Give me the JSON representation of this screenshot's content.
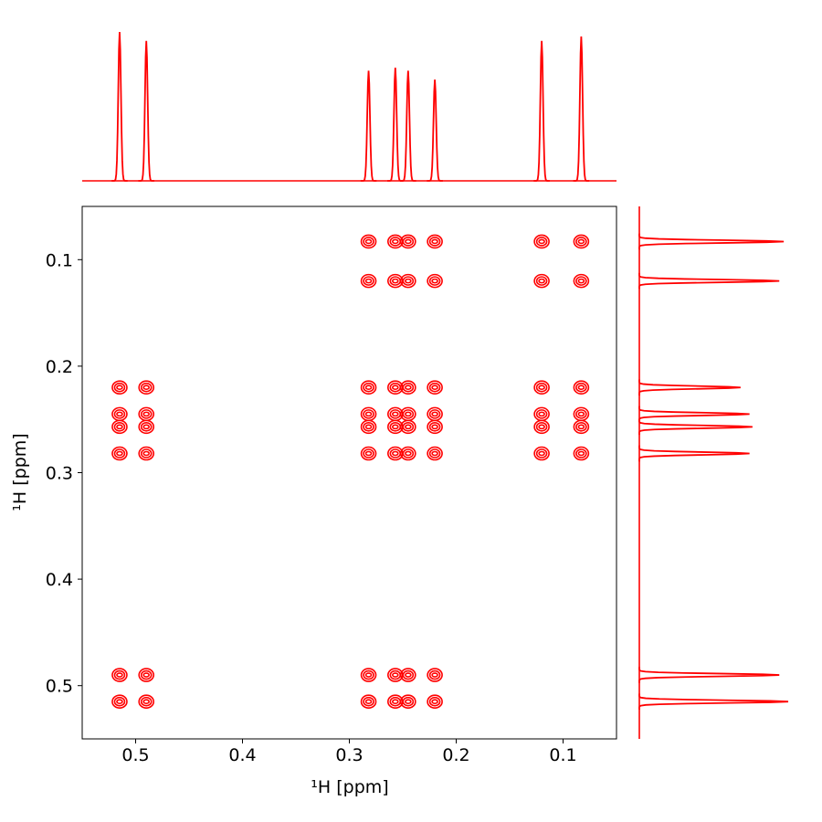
{
  "chart_data": {
    "type": "contour",
    "x_label": "¹H [ppm]",
    "y_label": "¹H [ppm]",
    "xlim": [
      0.55,
      0.05
    ],
    "ylim": [
      0.05,
      0.55
    ],
    "xticks": [
      0.5,
      0.4,
      0.3,
      0.2,
      0.1
    ],
    "yticks": [
      0.1,
      0.2,
      0.3,
      0.4,
      0.5
    ],
    "color": "#ff0000",
    "shifts": [
      0.515,
      0.49,
      0.282,
      0.257,
      0.245,
      0.22,
      0.12,
      0.083
    ],
    "projection": [
      1.0,
      0.94,
      0.74,
      0.76,
      0.74,
      0.68,
      0.94,
      0.97
    ],
    "peaks": {
      "x": [
        0.515,
        0.49,
        0.282,
        0.257,
        0.245,
        0.22,
        0.515,
        0.49,
        0.282,
        0.257,
        0.245,
        0.22,
        0.515,
        0.49,
        0.282,
        0.257,
        0.245,
        0.22,
        0.12,
        0.083,
        0.515,
        0.49,
        0.282,
        0.257,
        0.245,
        0.22,
        0.12,
        0.083,
        0.515,
        0.49,
        0.282,
        0.257,
        0.245,
        0.22,
        0.12,
        0.083,
        0.515,
        0.49,
        0.282,
        0.257,
        0.245,
        0.22,
        0.12,
        0.083,
        0.282,
        0.257,
        0.245,
        0.22,
        0.12,
        0.083,
        0.282,
        0.257,
        0.245,
        0.22,
        0.12,
        0.083
      ],
      "y": [
        0.515,
        0.515,
        0.515,
        0.515,
        0.515,
        0.515,
        0.49,
        0.49,
        0.49,
        0.49,
        0.49,
        0.49,
        0.282,
        0.282,
        0.282,
        0.282,
        0.282,
        0.282,
        0.282,
        0.282,
        0.257,
        0.257,
        0.257,
        0.257,
        0.257,
        0.257,
        0.257,
        0.257,
        0.245,
        0.245,
        0.245,
        0.245,
        0.245,
        0.245,
        0.245,
        0.245,
        0.22,
        0.22,
        0.22,
        0.22,
        0.22,
        0.22,
        0.22,
        0.22,
        0.12,
        0.12,
        0.12,
        0.12,
        0.12,
        0.12,
        0.083,
        0.083,
        0.083,
        0.083,
        0.083,
        0.083
      ]
    }
  }
}
